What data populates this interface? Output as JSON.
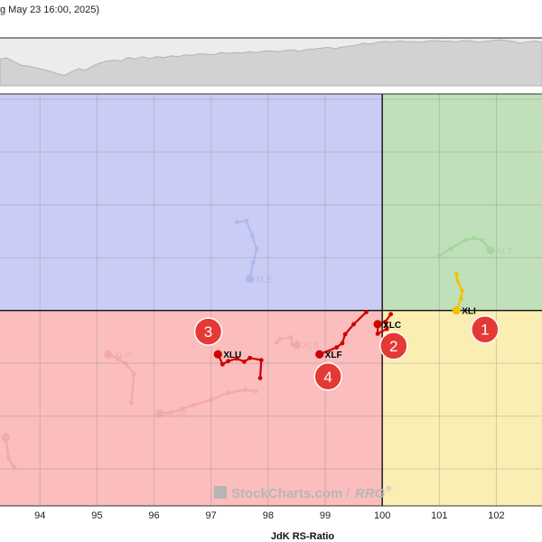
{
  "header": {
    "date_text": "g May 23 16:00, 2025)"
  },
  "watermark": {
    "brand": "StockCharts.com",
    "product": "RRG",
    "separator": "/",
    "registered": "®"
  },
  "colors": {
    "leading": "#bfe0bb",
    "weakening": "#fbeeb3",
    "lagging": "#fbbdbd",
    "improving": "#c9cdf5",
    "marker": "#e53935"
  },
  "chart_data": {
    "type": "scatter",
    "subtype": "relative-rotation-graph",
    "xlabel": "JdK RS-Ratio",
    "ylabel": "",
    "x_ticks": [
      94,
      95,
      96,
      97,
      98,
      99,
      100,
      101,
      102
    ],
    "xlim": [
      93.3,
      102.8
    ],
    "ylim": [
      96.3,
      104.1
    ],
    "center": [
      100,
      100
    ],
    "grid": true,
    "series": [
      {
        "name": "XLY",
        "color": "#86c776",
        "faded": true,
        "label_side": "right",
        "points": [
          [
            101.0,
            101.04
          ],
          [
            101.2,
            101.17
          ],
          [
            101.45,
            101.33
          ],
          [
            101.6,
            101.37
          ],
          [
            101.75,
            101.33
          ],
          [
            101.9,
            101.14
          ]
        ]
      },
      {
        "name": "XLI",
        "color": "#f3c100",
        "faded": false,
        "label_side": "right",
        "points": [
          [
            101.3,
            100.69
          ],
          [
            101.32,
            100.56
          ],
          [
            101.4,
            100.38
          ],
          [
            101.38,
            100.22
          ],
          [
            101.3,
            100.0
          ]
        ]
      },
      {
        "name": "XLE",
        "color": "#8f98e8",
        "faded": true,
        "label_side": "right",
        "points": [
          [
            97.45,
            101.67
          ],
          [
            97.62,
            101.7
          ],
          [
            97.72,
            101.42
          ],
          [
            97.8,
            101.17
          ],
          [
            97.74,
            100.91
          ],
          [
            97.68,
            100.6
          ]
        ]
      },
      {
        "name": "XLC",
        "color": "#cf0000",
        "faded": false,
        "label_side": "right",
        "points": [
          [
            100.15,
            99.93
          ],
          [
            100.05,
            99.78
          ],
          [
            100.08,
            99.65
          ],
          [
            99.92,
            99.56
          ],
          [
            99.92,
            99.74
          ]
        ]
      },
      {
        "name": "XLF",
        "color": "#cf0000",
        "faded": false,
        "label_side": "right",
        "points": [
          [
            99.72,
            99.97
          ],
          [
            99.5,
            99.74
          ],
          [
            99.35,
            99.55
          ],
          [
            99.3,
            99.38
          ],
          [
            99.2,
            99.3
          ],
          [
            98.9,
            99.17
          ]
        ]
      },
      {
        "name": "XLU",
        "color": "#cf0000",
        "faded": false,
        "label_side": "right",
        "points": [
          [
            97.86,
            98.72
          ],
          [
            97.88,
            99.06
          ],
          [
            97.68,
            99.1
          ],
          [
            97.58,
            99.03
          ],
          [
            97.45,
            99.09
          ],
          [
            97.3,
            99.04
          ],
          [
            97.2,
            98.98
          ],
          [
            97.12,
            99.17
          ]
        ]
      },
      {
        "name": "XLB",
        "color": "#e58f8f",
        "faded": true,
        "label_side": "right",
        "points": [
          [
            98.15,
            99.39
          ],
          [
            98.2,
            99.46
          ],
          [
            98.4,
            99.49
          ],
          [
            98.42,
            99.36
          ],
          [
            98.5,
            99.35
          ]
        ]
      },
      {
        "name": "XLP",
        "color": "#e58f8f",
        "faded": true,
        "label_side": "right",
        "points": [
          [
            95.6,
            98.25
          ],
          [
            95.65,
            98.8
          ],
          [
            95.5,
            99.0
          ],
          [
            95.38,
            99.08
          ],
          [
            95.2,
            99.17
          ]
        ]
      },
      {
        "name": "XLRE",
        "color": "#e58f8f",
        "faded": true,
        "label_side": "right",
        "points": [
          [
            97.78,
            98.47
          ],
          [
            97.6,
            98.5
          ],
          [
            97.3,
            98.44
          ],
          [
            97.0,
            98.31
          ],
          [
            96.7,
            98.21
          ],
          [
            96.5,
            98.14
          ],
          [
            96.3,
            98.07
          ],
          [
            96.1,
            98.05
          ]
        ]
      },
      {
        "name": "",
        "color": "#e58f8f",
        "faded": true,
        "label_side": "none",
        "points": [
          [
            93.55,
            97.03
          ],
          [
            93.45,
            97.2
          ],
          [
            93.4,
            97.6
          ]
        ]
      }
    ],
    "markers": [
      {
        "label": "1",
        "x": 101.8,
        "y": 99.64
      },
      {
        "label": "2",
        "x": 100.2,
        "y": 99.33
      },
      {
        "label": "3",
        "x": 96.95,
        "y": 99.6
      },
      {
        "label": "4",
        "x": 99.05,
        "y": 98.75
      }
    ],
    "index_line": [
      0.45,
      0.43,
      0.52,
      0.6,
      0.62,
      0.66,
      0.7,
      0.74,
      0.8,
      0.84,
      0.76,
      0.68,
      0.72,
      0.62,
      0.55,
      0.5,
      0.48,
      0.5,
      0.42,
      0.45,
      0.4,
      0.44,
      0.4,
      0.42,
      0.38,
      0.4,
      0.35,
      0.37,
      0.33,
      0.34,
      0.35,
      0.3,
      0.32,
      0.3,
      0.31,
      0.28,
      0.3,
      0.27,
      0.26,
      0.28,
      0.25,
      0.24,
      0.27,
      0.23,
      0.22,
      0.2,
      0.18,
      0.21,
      0.17,
      0.15,
      0.13,
      0.08,
      0.1,
      0.06,
      0.04,
      0.05,
      0.03,
      0.05,
      0.04,
      0.06,
      0.03,
      0.02,
      0.04,
      0.03,
      0.05,
      0.02,
      0.03,
      0.05,
      0.04,
      0.02,
      0.0,
      0.02,
      0.04,
      0.08,
      0.05,
      0.03,
      0.06
    ]
  }
}
